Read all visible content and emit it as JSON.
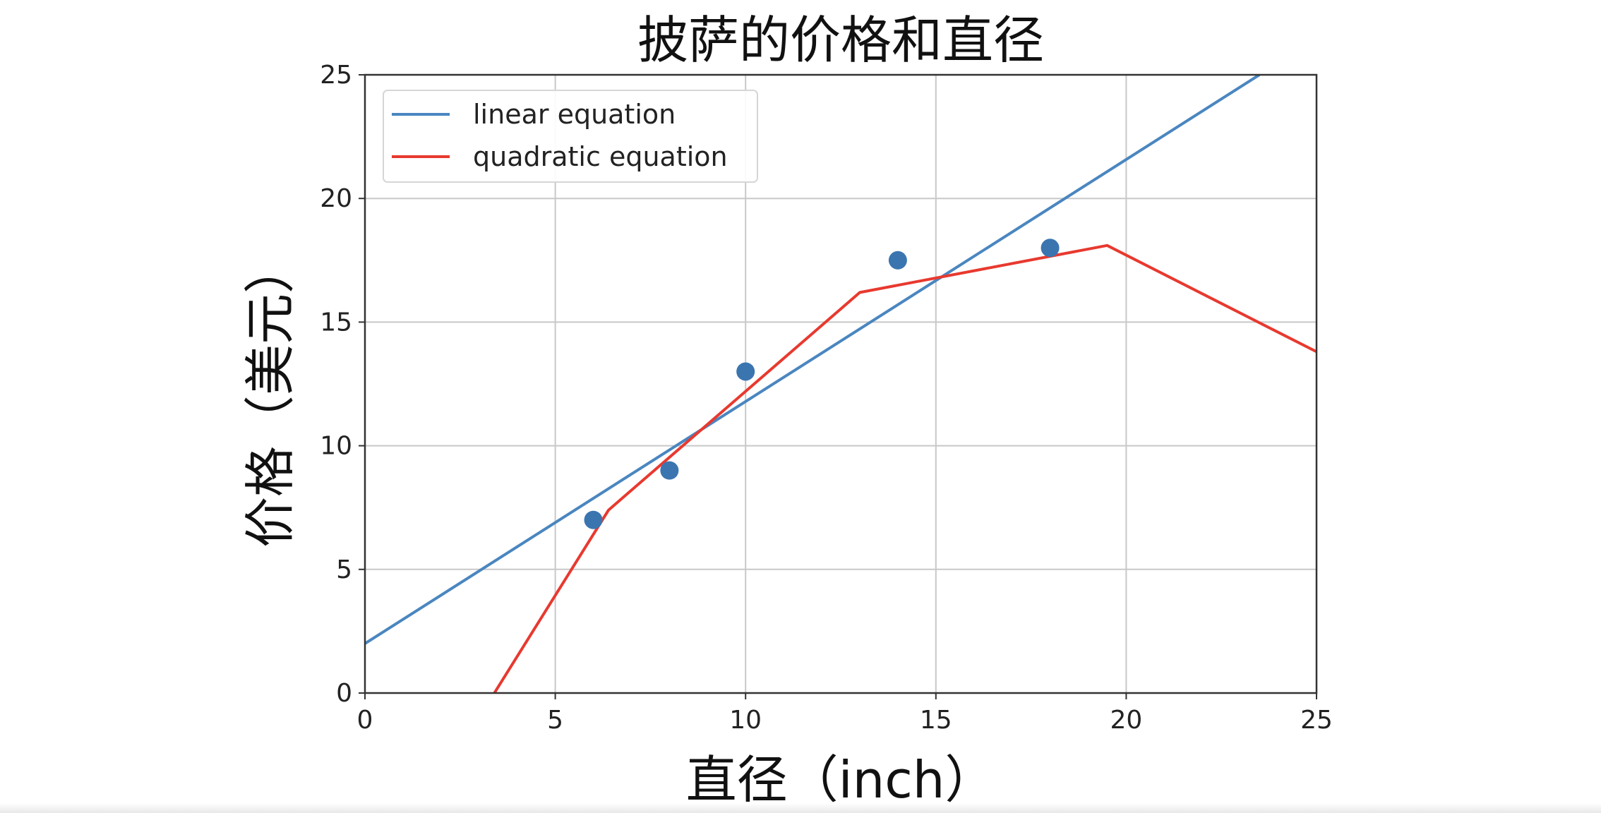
{
  "chart_data": {
    "type": "line",
    "title": "披萨的价格和直径",
    "xlabel": "直径（inch）",
    "ylabel": "价格（美元）",
    "xlim": [
      0,
      25
    ],
    "ylim": [
      0,
      25
    ],
    "xticks": [
      0,
      5,
      10,
      15,
      20,
      25
    ],
    "yticks": [
      0,
      5,
      10,
      15,
      20,
      25
    ],
    "grid": true,
    "legend_position": "upper-left",
    "scatter": {
      "color": "#3a75b0",
      "points": [
        {
          "x": 6,
          "y": 7
        },
        {
          "x": 8,
          "y": 9
        },
        {
          "x": 10,
          "y": 13
        },
        {
          "x": 14,
          "y": 17.5
        },
        {
          "x": 18,
          "y": 18
        }
      ]
    },
    "series": [
      {
        "name": "linear equation",
        "color": "#4a86c0",
        "points": [
          {
            "x": 0,
            "y": 2.0
          },
          {
            "x": 23.5,
            "y": 25.0
          }
        ]
      },
      {
        "name": "quadratic equation",
        "color": "#e8392f",
        "points": [
          {
            "x": 3.4,
            "y": 0
          },
          {
            "x": 6.4,
            "y": 7.4
          },
          {
            "x": 13.0,
            "y": 16.2
          },
          {
            "x": 19.5,
            "y": 18.1
          },
          {
            "x": 25.0,
            "y": 13.8
          }
        ]
      }
    ]
  }
}
